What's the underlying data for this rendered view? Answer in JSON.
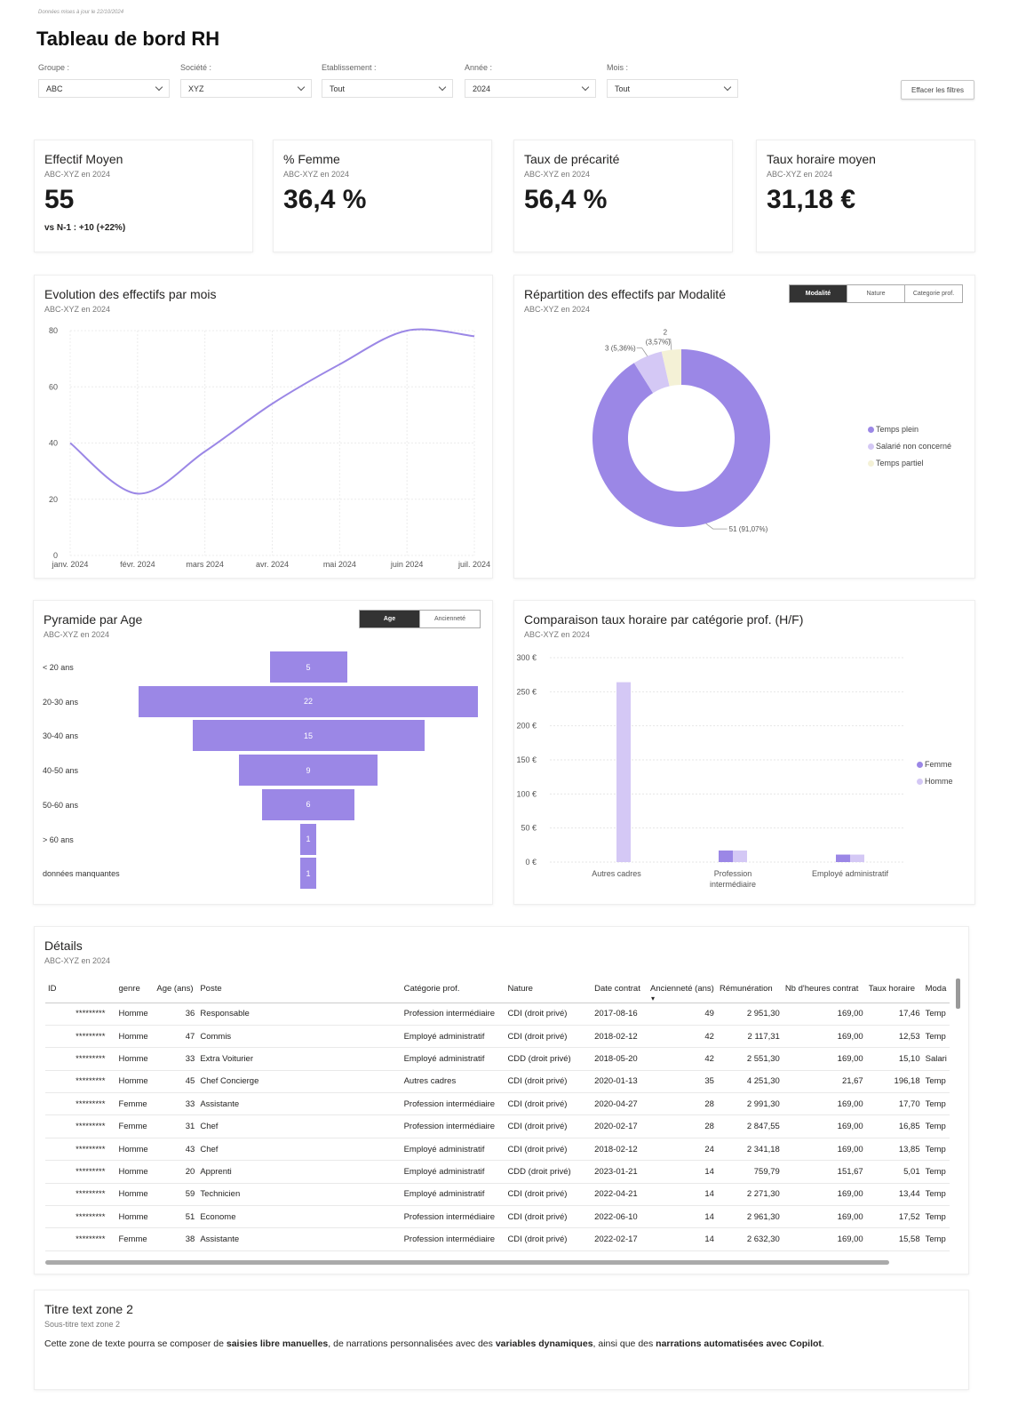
{
  "header": {
    "update_note": "Données mises à jour le 22/10/2024",
    "title": "Tableau de bord RH",
    "clear_button": "Effacer les filtres"
  },
  "filters": [
    {
      "label": "Groupe :",
      "value": "ABC"
    },
    {
      "label": "Société :",
      "value": "XYZ"
    },
    {
      "label": "Etablissement :",
      "value": "Tout"
    },
    {
      "label": "Année :",
      "value": "2024"
    },
    {
      "label": "Mois :",
      "value": "Tout"
    }
  ],
  "kpis": [
    {
      "title": "Effectif Moyen",
      "subtitle": "ABC-XYZ en 2024",
      "value": "55",
      "vs": "vs N-1 : +10 (+22%)"
    },
    {
      "title": "% Femme",
      "subtitle": "ABC-XYZ en 2024",
      "value": "36,4 %"
    },
    {
      "title": "Taux de précarité",
      "subtitle": "ABC-XYZ en 2024",
      "value": "56,4 %"
    },
    {
      "title": "Taux horaire moyen",
      "subtitle": "ABC-XYZ en 2024",
      "value": "31,18 €"
    }
  ],
  "evolution": {
    "title": "Evolution des effectifs par mois",
    "subtitle": "ABC-XYZ en 2024"
  },
  "repartition": {
    "title": "Répartition des effectifs par Modalité",
    "subtitle": "ABC-XYZ en 2024",
    "toggles": [
      "Modalité",
      "Nature",
      "Categorie prof."
    ]
  },
  "pyramide": {
    "title": "Pyramide par Age",
    "subtitle": "ABC-XYZ en 2024",
    "toggles": [
      "Age",
      "Ancienneté"
    ]
  },
  "comparaison": {
    "title": "Comparaison taux horaire par catégorie prof. (H/F)",
    "subtitle": "ABC-XYZ en 2024"
  },
  "chart_data": [
    {
      "type": "line",
      "title": "Evolution des effectifs par mois",
      "x": [
        "janv. 2024",
        "févr. 2024",
        "mars 2024",
        "avr. 2024",
        "mai 2024",
        "juin 2024",
        "juil. 2024"
      ],
      "values": [
        40,
        22,
        37,
        54,
        68,
        80,
        78
      ],
      "ylim": [
        0,
        80
      ],
      "yticks": [
        0,
        20,
        40,
        60,
        80
      ],
      "color": "#9b87e6"
    },
    {
      "type": "pie",
      "title": "Répartition des effectifs par Modalité",
      "slices": [
        {
          "name": "Temps plein",
          "value": 51,
          "label": "51 (91,07%)",
          "color": "#9b87e6"
        },
        {
          "name": "Salarié non concerné",
          "value": 3,
          "label": "3 (5,36%)",
          "color": "#d4c8f5"
        },
        {
          "name": "Temps partiel",
          "value": 2,
          "label": "2",
          "sublabel": "(3,57%)",
          "color": "#f4f1d6"
        }
      ]
    },
    {
      "type": "bar",
      "title": "Pyramide par Age",
      "categories": [
        "< 20 ans",
        "20-30 ans",
        "30-40 ans",
        "40-50 ans",
        "50-60 ans",
        "> 60 ans",
        "données manquantes"
      ],
      "values": [
        5,
        22,
        15,
        9,
        6,
        1,
        1
      ],
      "color": "#9b87e6"
    },
    {
      "type": "bar",
      "title": "Comparaison taux horaire par catégorie prof. (H/F)",
      "categories": [
        "Autres cadres",
        "Profession intermédiaire",
        "Employé administratif"
      ],
      "series": [
        {
          "name": "Femme",
          "values": [
            0,
            17,
            11
          ],
          "color": "#9b87e6"
        },
        {
          "name": "Homme",
          "values": [
            264,
            17,
            11
          ],
          "color": "#d4c8f5"
        }
      ],
      "ylim": [
        0,
        300
      ],
      "yticks": [
        "0 €",
        "50 €",
        "100 €",
        "150 €",
        "200 €",
        "250 €",
        "300 €"
      ]
    }
  ],
  "details": {
    "title": "Détails",
    "subtitle": "ABC-XYZ en 2024",
    "columns": [
      "ID",
      "genre",
      "Age (ans)",
      "Poste",
      "Catégorie prof.",
      "Nature",
      "Date contrat",
      "Ancienneté (ans)",
      "Rémunération",
      "Nb d'heures contrat",
      "Taux horaire",
      "Moda"
    ],
    "rows": [
      [
        "*********",
        "Homme",
        "36",
        "Responsable",
        "Profession intermédiaire",
        "CDI (droit privé)",
        "2017-08-16",
        "49",
        "2 951,30",
        "169,00",
        "17,46",
        "Temp"
      ],
      [
        "*********",
        "Homme",
        "47",
        "Commis",
        "Employé administratif",
        "CDI (droit privé)",
        "2018-02-12",
        "42",
        "2 117,31",
        "169,00",
        "12,53",
        "Temp"
      ],
      [
        "*********",
        "Homme",
        "33",
        "Extra Voiturier",
        "Employé administratif",
        "CDD (droit privé)",
        "2018-05-20",
        "42",
        "2 551,30",
        "169,00",
        "15,10",
        "Salari"
      ],
      [
        "*********",
        "Homme",
        "45",
        "Chef Concierge",
        "Autres cadres",
        "CDI (droit privé)",
        "2020-01-13",
        "35",
        "4 251,30",
        "21,67",
        "196,18",
        "Temp"
      ],
      [
        "*********",
        "Femme",
        "33",
        "Assistante",
        "Profession intermédiaire",
        "CDI (droit privé)",
        "2020-04-27",
        "28",
        "2 991,30",
        "169,00",
        "17,70",
        "Temp"
      ],
      [
        "*********",
        "Femme",
        "31",
        "Chef",
        "Profession intermédiaire",
        "CDI (droit privé)",
        "2020-02-17",
        "28",
        "2 847,55",
        "169,00",
        "16,85",
        "Temp"
      ],
      [
        "*********",
        "Homme",
        "43",
        "Chef",
        "Employé administratif",
        "CDI (droit privé)",
        "2018-02-12",
        "24",
        "2 341,18",
        "169,00",
        "13,85",
        "Temp"
      ],
      [
        "*********",
        "Homme",
        "20",
        "Apprenti",
        "Employé administratif",
        "CDD (droit privé)",
        "2023-01-21",
        "14",
        "759,79",
        "151,67",
        "5,01",
        "Temp"
      ],
      [
        "*********",
        "Homme",
        "59",
        "Technicien",
        "Employé administratif",
        "CDI (droit privé)",
        "2022-04-21",
        "14",
        "2 271,30",
        "169,00",
        "13,44",
        "Temp"
      ],
      [
        "*********",
        "Homme",
        "51",
        "Econome",
        "Profession intermédiaire",
        "CDI (droit privé)",
        "2022-06-10",
        "14",
        "2 961,30",
        "169,00",
        "17,52",
        "Temp"
      ],
      [
        "*********",
        "Femme",
        "38",
        "Assistante",
        "Profession intermédiaire",
        "CDI (droit privé)",
        "2022-02-17",
        "14",
        "2 632,30",
        "169,00",
        "15,58",
        "Temp"
      ]
    ]
  },
  "textzone": {
    "title": "Titre text zone 2",
    "subtitle": "Sous-titre text zone 2",
    "p1": "Cette zone de texte pourra se composer de ",
    "b1": "saisies libre manuelles",
    "p2": ", de narrations personnalisées avec des ",
    "b2": "variables dynamiques",
    "p3": ", ainsi que des ",
    "b3": "narrations automatisées avec Copilot",
    "p4": "."
  }
}
